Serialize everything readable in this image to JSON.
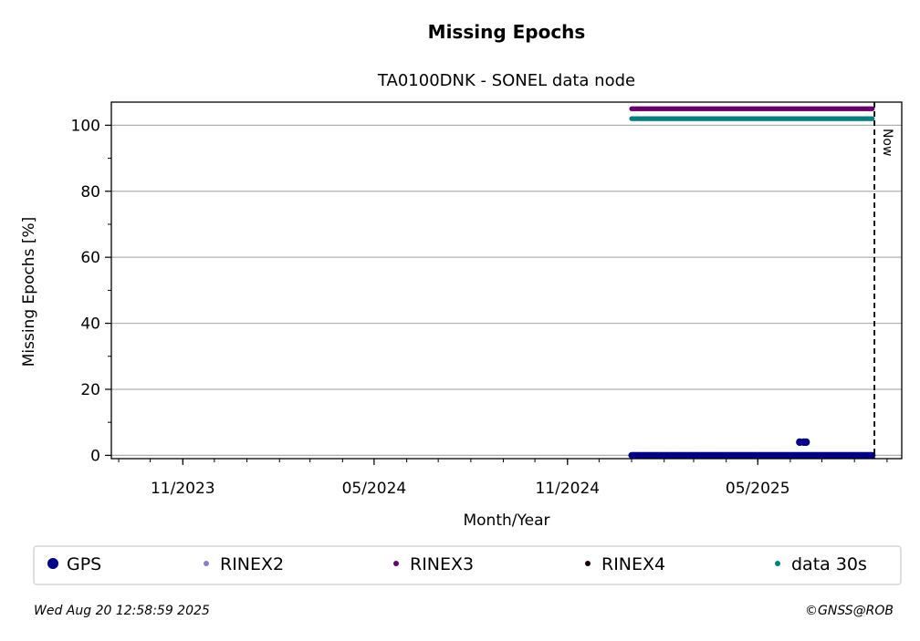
{
  "chart_data": {
    "type": "scatter",
    "title": "Missing Epochs",
    "subtitle": "TA0100DNK - SONEL data node",
    "xlabel": "Month/Year",
    "ylabel": "Missing Epochs [%]",
    "x_range": [
      "2023-08-25",
      "2025-09-15"
    ],
    "y_range": [
      -1,
      107
    ],
    "x_ticks": [
      {
        "date": "2023-11-01",
        "label": "11/2023"
      },
      {
        "date": "2024-05-01",
        "label": "05/2024"
      },
      {
        "date": "2024-11-01",
        "label": "11/2024"
      },
      {
        "date": "2025-05-01",
        "label": "05/2025"
      }
    ],
    "y_ticks": [
      0,
      20,
      40,
      60,
      80,
      100
    ],
    "grid": "horizontal",
    "now": {
      "date": "2025-08-20",
      "label": "Now"
    },
    "series": [
      {
        "name": "GPS",
        "color": "#00008b",
        "marker_size": "large",
        "start": "2025-01-01",
        "end": "2025-08-18",
        "value": 0,
        "outliers": [
          {
            "date": "2025-06-10",
            "value": 4
          },
          {
            "date": "2025-06-14",
            "value": 4
          },
          {
            "date": "2025-06-16",
            "value": 4
          }
        ]
      },
      {
        "name": "RINEX2",
        "color": "#8b7fc8",
        "marker_size": "small",
        "start": null,
        "end": null,
        "value": null
      },
      {
        "name": "RINEX3",
        "color": "#6b006b",
        "marker_size": "small",
        "start": "2025-01-01",
        "end": "2025-08-18",
        "value": 105
      },
      {
        "name": "RINEX4",
        "color": "#1a0010",
        "marker_size": "small",
        "start": null,
        "end": null,
        "value": null
      },
      {
        "name": "data 30s",
        "color": "#008080",
        "marker_size": "small",
        "start": "2025-01-01",
        "end": "2025-08-18",
        "value": 102
      }
    ],
    "legend_position": "bottom"
  },
  "footer": {
    "timestamp": "Wed Aug 20 12:58:59 2025",
    "credit": "©GNSS@ROB"
  }
}
